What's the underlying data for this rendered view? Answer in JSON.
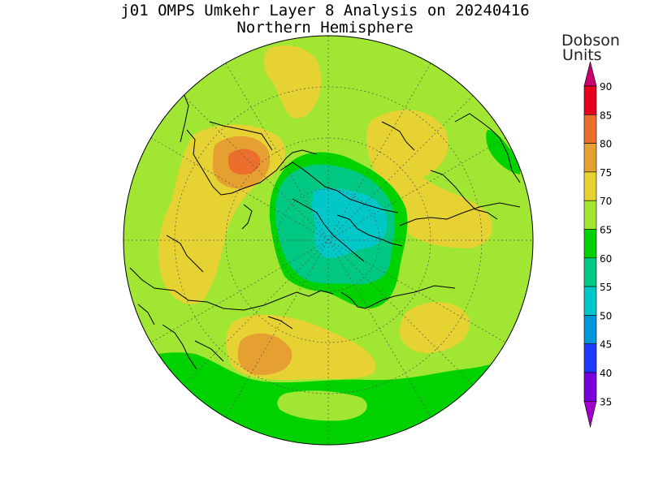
{
  "title": {
    "line1": "j01 OMPS Umkehr Layer 8 Analysis on 20240416",
    "line2": "Northern Hemisphere"
  },
  "colorbar": {
    "unit_line1": "Dobson",
    "unit_line2": "Units",
    "levels": [
      {
        "value": "90",
        "color": "#e6001e"
      },
      {
        "value": "85",
        "color": "#eb6e2d"
      },
      {
        "value": "80",
        "color": "#e6a032"
      },
      {
        "value": "75",
        "color": "#e6d232"
      },
      {
        "value": "70",
        "color": "#a0e632"
      },
      {
        "value": "65",
        "color": "#00d200"
      },
      {
        "value": "60",
        "color": "#00c882"
      },
      {
        "value": "55",
        "color": "#00c8c8"
      },
      {
        "value": "50",
        "color": "#0096dc"
      },
      {
        "value": "45",
        "color": "#1e3cff"
      },
      {
        "value": "40",
        "color": "#7800dc"
      },
      {
        "value": "35",
        "color": "#a000c8"
      }
    ],
    "top_arrow_color": "#c8006e",
    "bottom_arrow_color": "#a000c8"
  },
  "colors": {
    "level_65_70": "#a0e632",
    "level_70_75": "#e6d232",
    "level_75_80": "#e6a032",
    "level_80_85": "#eb6e2d",
    "level_60_65": "#00d200",
    "level_55_60": "#00c882",
    "level_50_55": "#00c8c8"
  }
}
